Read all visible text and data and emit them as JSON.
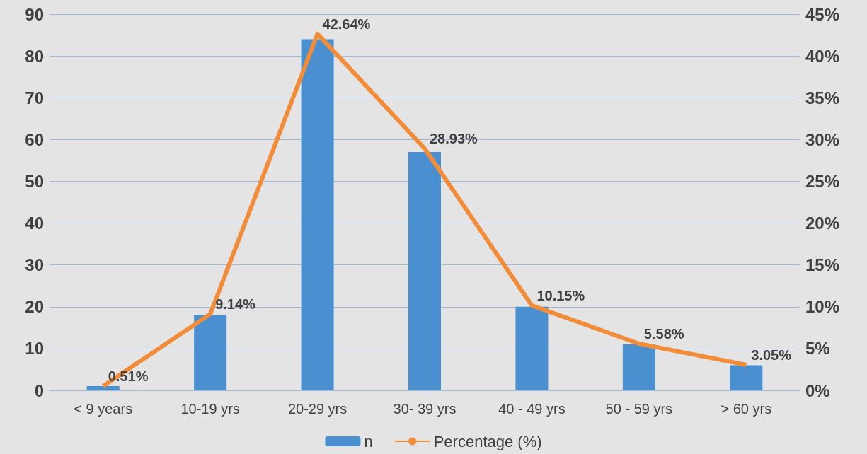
{
  "chart_data": {
    "type": "bar",
    "categories": [
      "< 9 years",
      "10-19 yrs",
      "20-29 yrs",
      "30- 39 yrs",
      "40 - 49 yrs",
      "50 - 59 yrs",
      "> 60 yrs"
    ],
    "series": [
      {
        "name": "n",
        "color": "#4a8fcf",
        "values": [
          1,
          18,
          84,
          57,
          20,
          11,
          6
        ]
      },
      {
        "name": "Percentage (%)",
        "type": "line",
        "axis": "y2",
        "color": "#f28c38",
        "values": [
          0.51,
          9.14,
          42.64,
          28.93,
          10.15,
          5.58,
          3.05
        ],
        "value_labels": [
          "0.51%",
          "9.14%",
          "42.64%",
          "28.93%",
          "10.15%",
          "5.58%",
          "3.05%"
        ]
      }
    ],
    "ylim": [
      0,
      90
    ],
    "yticks": [
      0,
      10,
      20,
      30,
      40,
      50,
      60,
      70,
      80,
      90
    ],
    "y2lim": [
      0,
      45
    ],
    "y2ticks": [
      {
        "value": 0,
        "label": "0%"
      },
      {
        "value": 5,
        "label": "5%"
      },
      {
        "value": 10,
        "label": "10%"
      },
      {
        "value": 15,
        "label": "15%"
      },
      {
        "value": 20,
        "label": "20%"
      },
      {
        "value": 25,
        "label": "25%"
      },
      {
        "value": 30,
        "label": "30%"
      },
      {
        "value": 35,
        "label": "35%"
      },
      {
        "value": 40,
        "label": "40%"
      },
      {
        "value": 45,
        "label": "45%"
      }
    ],
    "grid": "y",
    "legend": "bottom",
    "marker": "none"
  }
}
